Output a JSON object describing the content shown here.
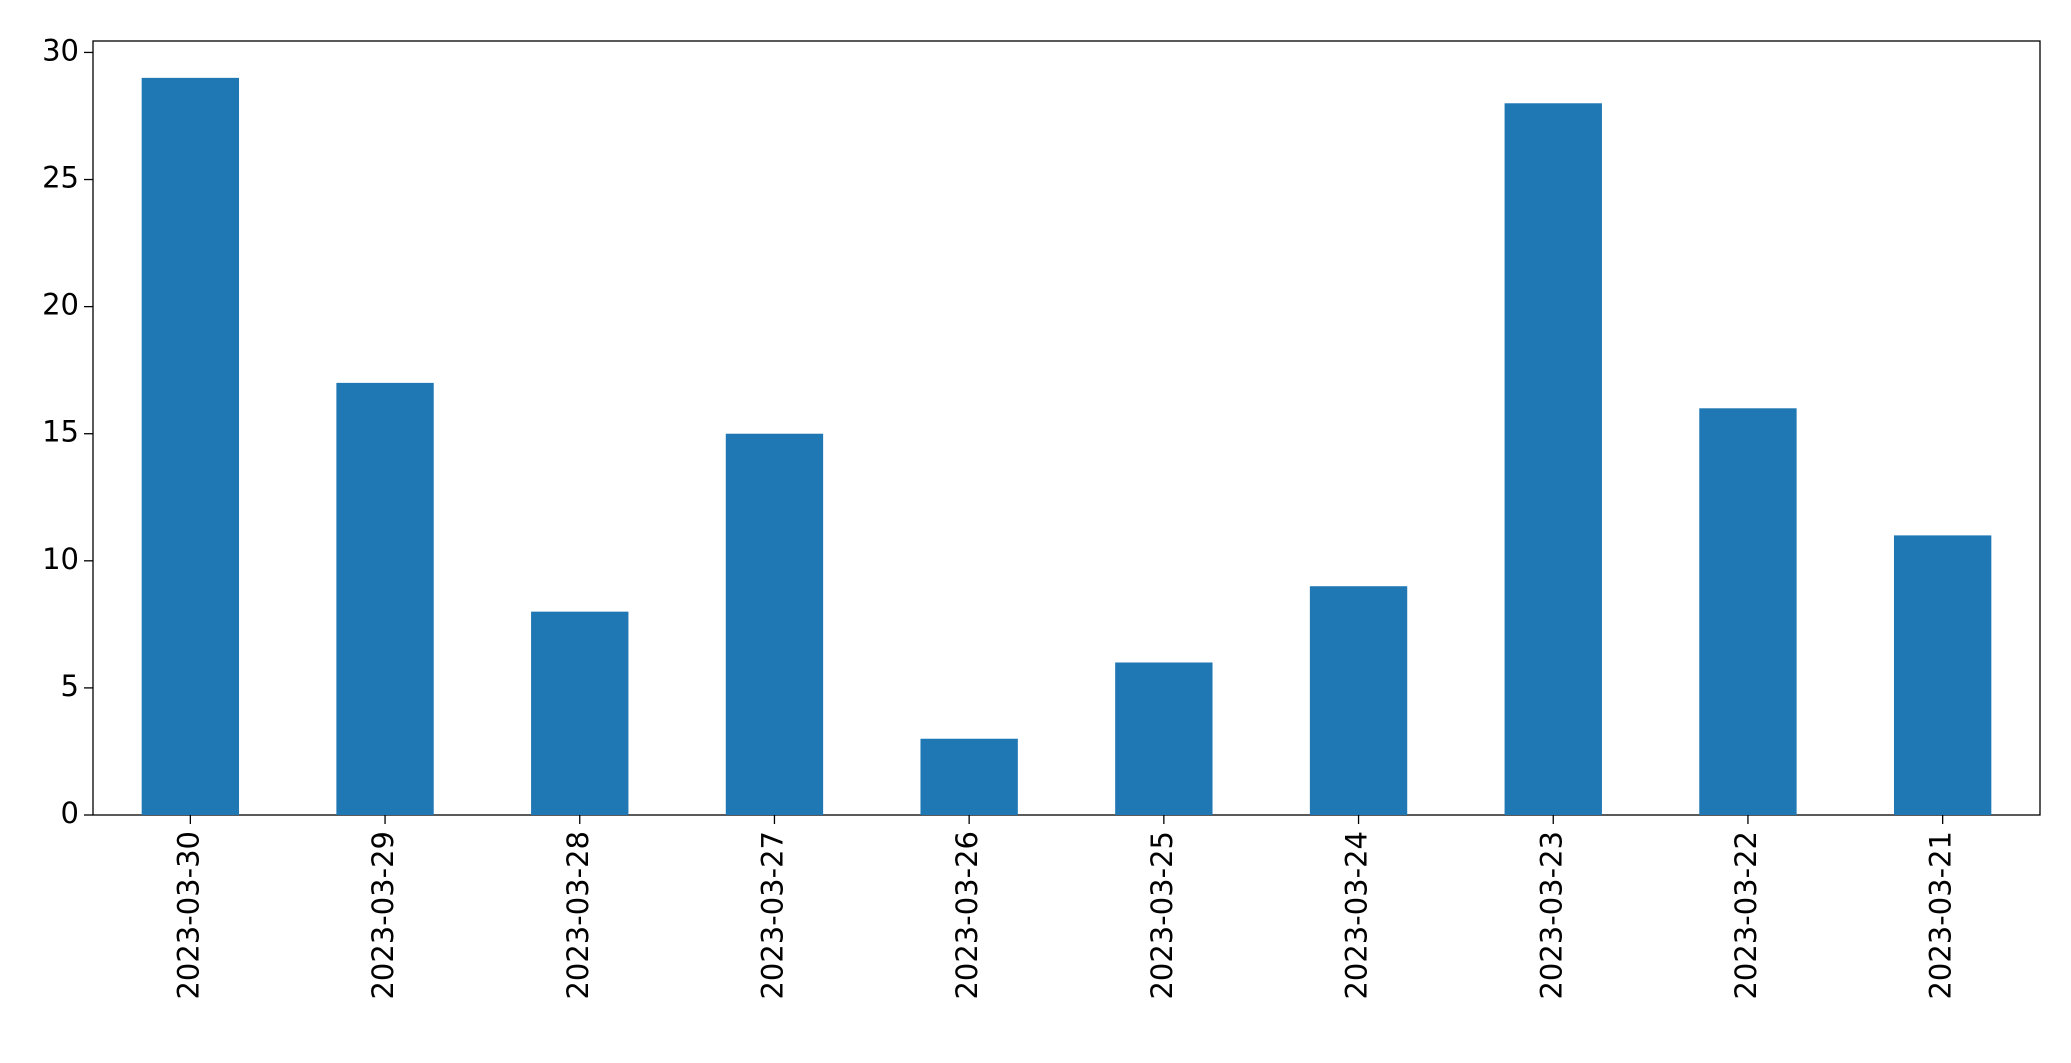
{
  "chart_data": {
    "type": "bar",
    "categories": [
      "2023-03-30",
      "2023-03-29",
      "2023-03-28",
      "2023-03-27",
      "2023-03-26",
      "2023-03-25",
      "2023-03-24",
      "2023-03-23",
      "2023-03-22",
      "2023-03-21"
    ],
    "values": [
      29,
      17,
      8,
      15,
      3,
      6,
      9,
      28,
      16,
      11
    ],
    "color": "#1f77b4",
    "ylim": [
      0,
      30.45
    ],
    "yticks": [
      0,
      5,
      10,
      15,
      20,
      25,
      30
    ],
    "grid": false
  }
}
